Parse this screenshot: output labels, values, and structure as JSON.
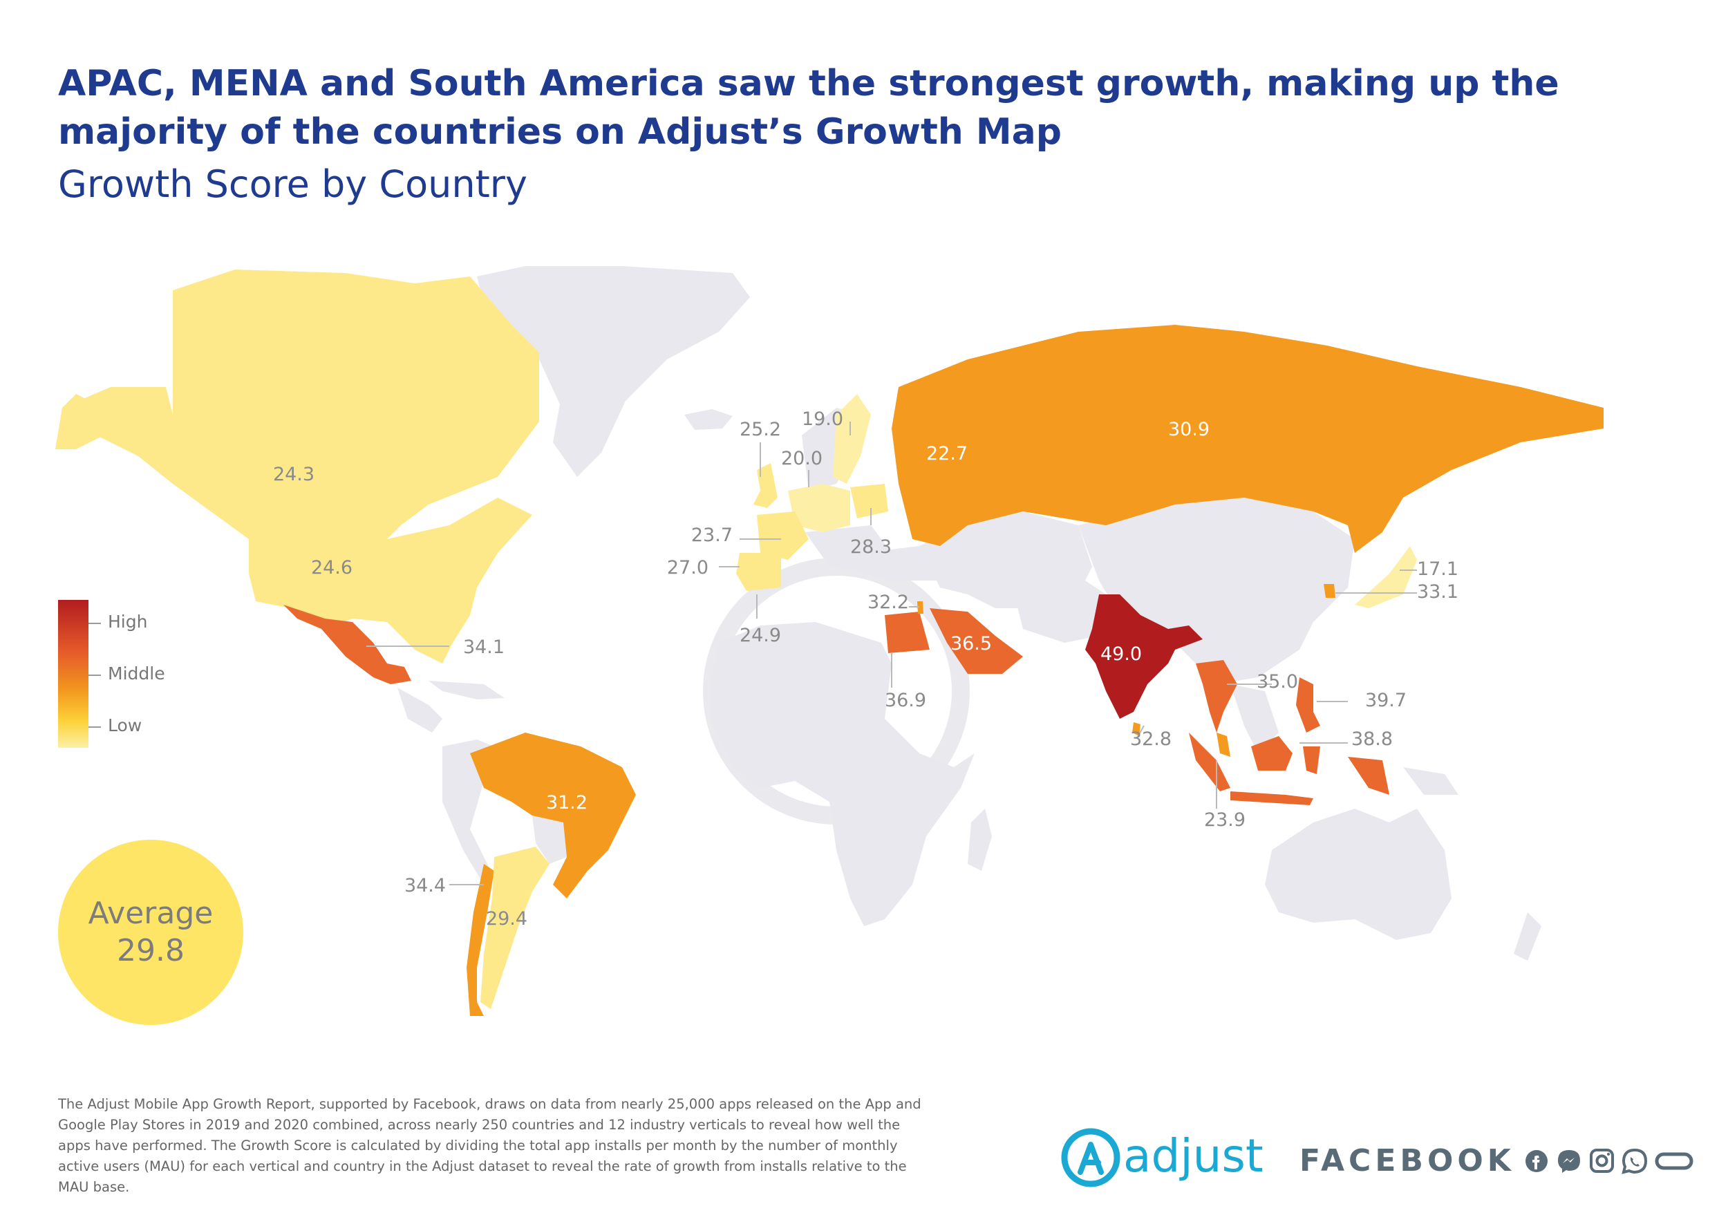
{
  "header": {
    "title": "APAC, MENA and South America saw the strongest growth, making up the majority of the countries on Adjust’s Growth Map",
    "subtitle": "Growth Score by Country"
  },
  "legend": {
    "high": "High",
    "middle": "Middle",
    "low": "Low",
    "colors": [
      "#b11d1f",
      "#e55a2a",
      "#f39a1f",
      "#fdd23a",
      "#fdf0a6"
    ]
  },
  "average": {
    "label": "Average",
    "value": "29.8"
  },
  "map_data": {
    "base_color": "#e8e8ee",
    "countries": [
      {
        "value": "24.3",
        "color": "#fde98a"
      },
      {
        "value": "24.6",
        "color": "#fde98a"
      },
      {
        "value": "34.1",
        "color": "#e8682e"
      },
      {
        "value": "31.2",
        "color": "#f39a1f"
      },
      {
        "value": "34.4",
        "color": "#f39a1f"
      },
      {
        "value": "29.4",
        "color": "#fde98a"
      },
      {
        "value": "25.2",
        "color": "#fde98a"
      },
      {
        "value": "19.0",
        "color": "#fdf0a6"
      },
      {
        "value": "20.0",
        "color": "#fdf0a6"
      },
      {
        "value": "23.7",
        "color": "#fde98a"
      },
      {
        "value": "27.0",
        "color": "#fde98a"
      },
      {
        "value": "28.3",
        "color": "#fde98a"
      },
      {
        "value": "24.9",
        "color": "#fde98a"
      },
      {
        "value": "22.7",
        "color": "#f39a1f"
      },
      {
        "value": "30.9",
        "color": "#f39a1f"
      },
      {
        "value": "32.2",
        "color": "#f39a1f"
      },
      {
        "value": "36.9",
        "color": "#e8682e"
      },
      {
        "value": "36.5",
        "color": "#e8682e"
      },
      {
        "value": "49.0",
        "color": "#b11d1f"
      },
      {
        "value": "32.8",
        "color": "#f39a1f"
      },
      {
        "value": "35.0",
        "color": "#e8682e"
      },
      {
        "value": "39.7",
        "color": "#e8682e"
      },
      {
        "value": "38.8",
        "color": "#e8682e"
      },
      {
        "value": "23.9",
        "color": "#e8682e"
      },
      {
        "value": "17.1",
        "color": "#fdf0a6"
      },
      {
        "value": "33.1",
        "color": "#f39a1f"
      }
    ]
  },
  "footnote": "The Adjust Mobile App Growth Report, supported by Facebook, draws on data from nearly 25,000 apps released on the App and Google Play Stores in 2019 and 2020 combined, across nearly 250 countries and 12 industry verticals to reveal how well the apps have performed. The Growth Score is calculated by dividing the total app installs per month by the number of monthly active users (MAU) for each vertical and country in the Adjust dataset to reveal the rate of growth from installs relative to the MAU base.",
  "branding": {
    "adjust": "adjust",
    "facebook": "FACEBOOK",
    "facebook_icons": [
      "facebook-icon",
      "messenger-icon",
      "instagram-icon",
      "whatsapp-icon",
      "oculus-icon"
    ],
    "adjust_color": "#1ba8d3"
  }
}
